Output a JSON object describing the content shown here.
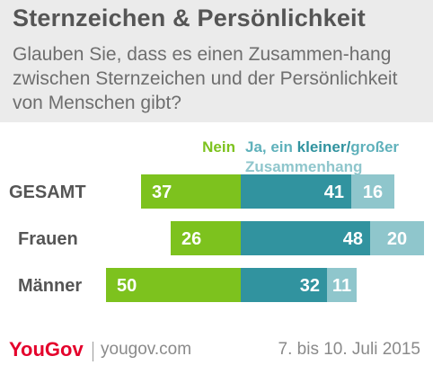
{
  "title": "Sternzeichen  & Persönlichkeit",
  "subtitle": "Glauben Sie, dass es einen Zusammen-hang zwischen Sternzeichen und der Persönlichkeit von Menschen gibt?",
  "footer": {
    "brand": "YouGov",
    "url": "yougov.com",
    "date": "7. bis 10. Juli 2015"
  },
  "chart_data": {
    "type": "bar",
    "orientation": "horizontal",
    "stacked": "diverging",
    "categories": [
      "GESAMT",
      "Frauen",
      "Männer"
    ],
    "legend": {
      "nein": "Nein",
      "ja_prefix": "Ja, ein ",
      "kleiner": "kleiner",
      "slash": "/",
      "grosser": "großer",
      "zusammenhang": "Zusammenhang"
    },
    "series": [
      {
        "name": "Nein",
        "values": [
          37,
          26,
          50
        ],
        "color": "#7dc21e"
      },
      {
        "name": "kleiner",
        "values": [
          41,
          48,
          32
        ],
        "color": "#31939f"
      },
      {
        "name": "großer",
        "values": [
          16,
          20,
          11
        ],
        "color": "#8fc6cc"
      }
    ],
    "colors": {
      "label": "#555555",
      "value_text": "#ffffff",
      "legend_nein": "#7dc21e",
      "legend_ja": "#5fb1bb",
      "legend_kleiner": "#31939f"
    }
  }
}
